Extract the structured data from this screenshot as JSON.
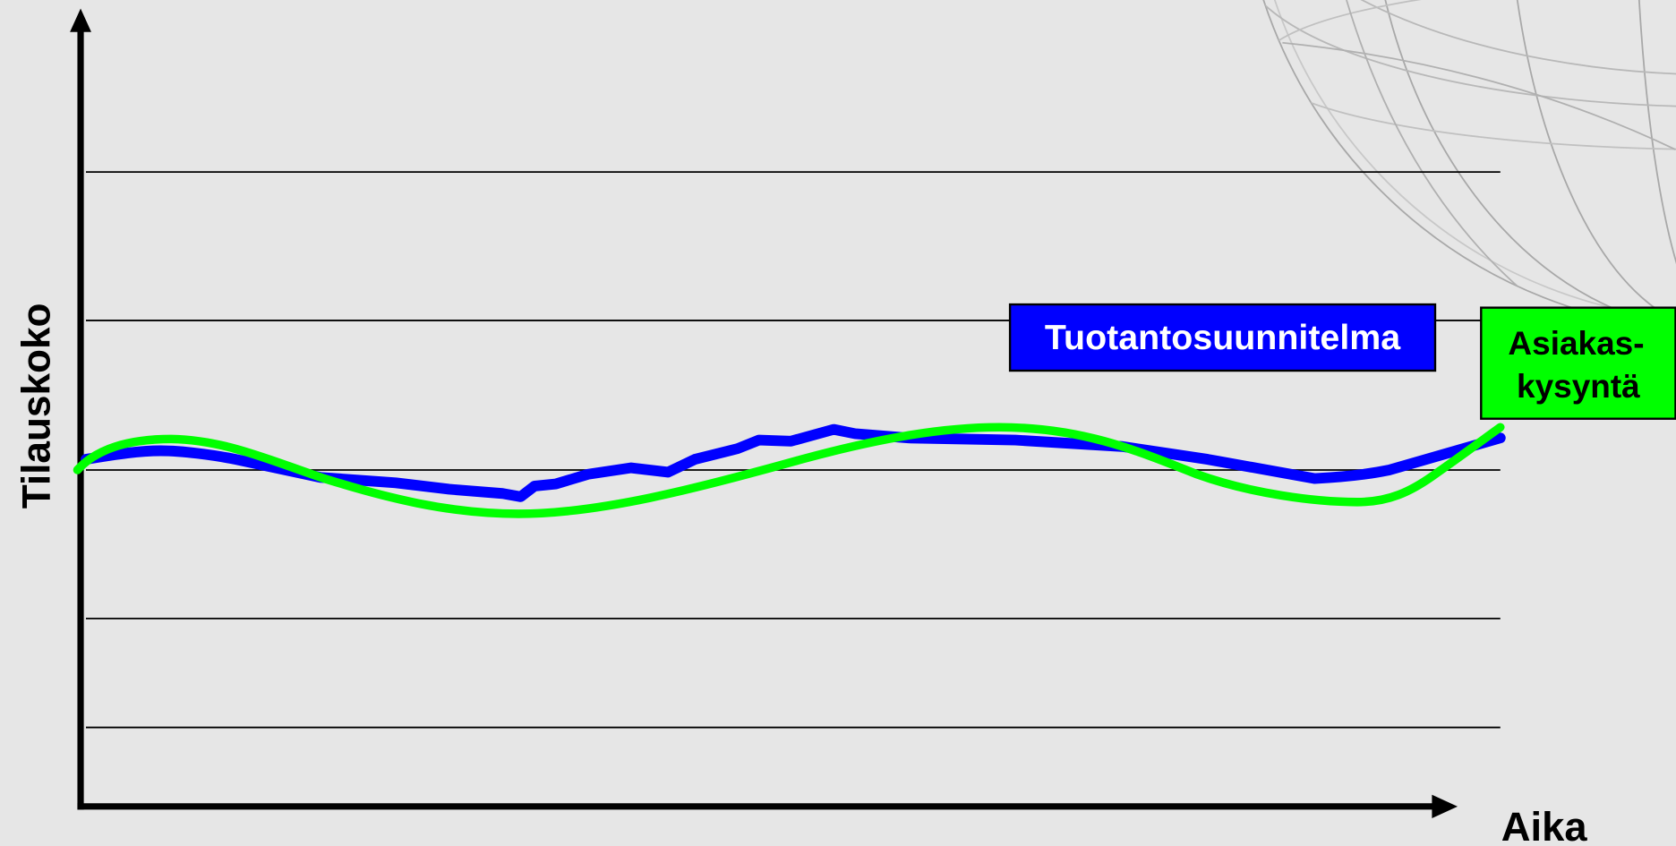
{
  "axes": {
    "y_label": "Tilauskoko",
    "x_label": "Aika"
  },
  "labels": [
    {
      "lines": [
        "Tuotantosuunnitelma"
      ]
    },
    {
      "lines": [
        "Asiakas-",
        "kysyntä"
      ]
    }
  ]
}
